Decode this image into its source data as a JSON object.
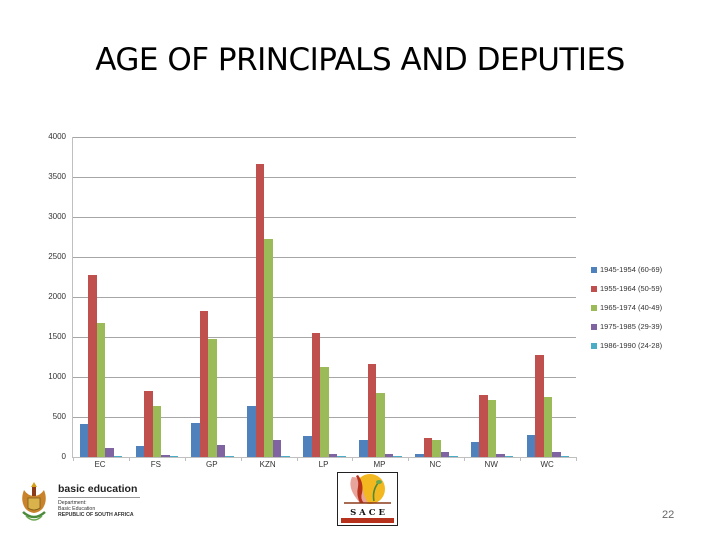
{
  "slide": {
    "title": "AGE OF PRINCIPALS AND DEPUTIES",
    "page_number": "22"
  },
  "footer": {
    "dbe_logo": {
      "name": "basic education",
      "line1": "Department:",
      "line2": "Basic Education",
      "line3": "REPUBLIC OF SOUTH AFRICA"
    },
    "sace_logo": {
      "text": "S A C E"
    }
  },
  "chart_data": {
    "type": "bar",
    "title": "",
    "xlabel": "",
    "ylabel": "",
    "ylim": [
      0,
      4000
    ],
    "yticks": [
      0,
      500,
      1000,
      1500,
      2000,
      2500,
      3000,
      3500,
      4000
    ],
    "ytick_labels": [
      "0",
      "500",
      "1000",
      "1500",
      "2000",
      "2500",
      "3000",
      "3500",
      "4000"
    ],
    "grid": true,
    "legend_position": "right",
    "categories": [
      "EC",
      "FS",
      "GP",
      "KZN",
      "LP",
      "MP",
      "NC",
      "NW",
      "WC"
    ],
    "series": [
      {
        "name": "1945-1954 (60-69)",
        "color": "#4f81bd",
        "values": [
          415,
          140,
          425,
          640,
          260,
          210,
          40,
          190,
          280
        ]
      },
      {
        "name": "1955-1964 (50-59)",
        "color": "#c0504d",
        "values": [
          2280,
          825,
          1825,
          3660,
          1545,
          1165,
          240,
          780,
          1280
        ]
      },
      {
        "name": "1965-1974 (40-49)",
        "color": "#9bbb59",
        "values": [
          1680,
          640,
          1470,
          2720,
          1125,
          795,
          215,
          715,
          755
        ]
      },
      {
        "name": "1975-1985 (29-39)",
        "color": "#8064a2",
        "values": [
          115,
          25,
          150,
          210,
          40,
          40,
          65,
          40,
          60
        ]
      },
      {
        "name": "1986-1990 (24-28)",
        "color": "#4bacc6",
        "values": [
          2,
          5,
          3,
          5,
          5,
          3,
          1,
          5,
          2
        ]
      }
    ]
  }
}
